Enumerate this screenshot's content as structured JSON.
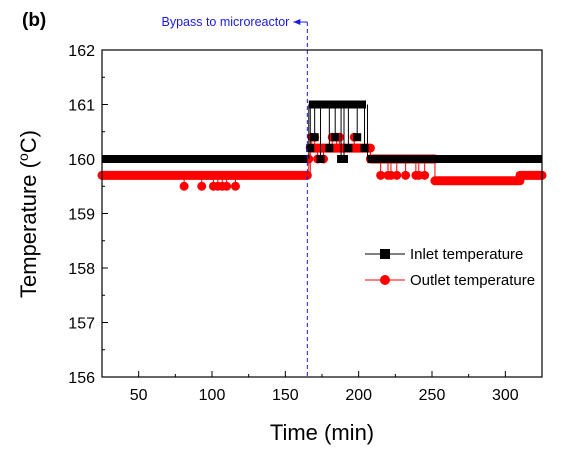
{
  "panel_label": "(b)",
  "colors": {
    "inlet": "#000000",
    "outlet": "#ff0000",
    "annotation": "#1a1ae6"
  },
  "chart_data": {
    "type": "line",
    "xlabel": "Time (min)",
    "ylabel_main": "Temperature (",
    "ylabel_sup": "o",
    "ylabel_unit": "C)",
    "xlim": [
      25,
      325
    ],
    "ylim": [
      156,
      162
    ],
    "xticks": [
      50,
      100,
      150,
      200,
      250,
      300
    ],
    "yticks": [
      156,
      157,
      158,
      159,
      160,
      161,
      162
    ],
    "grid": false,
    "legend_position": "right",
    "annotation": {
      "text": "Bypass to microreactor",
      "x": 165
    },
    "series": [
      {
        "name": "Inlet temperature",
        "marker": "square",
        "color": "#000000",
        "segments": [
          {
            "x_start": 25,
            "x_end": 165,
            "y": 160.0
          },
          {
            "x_start": 166,
            "x_end": 205,
            "y": 161.0
          },
          {
            "x_start": 206,
            "x_end": 325,
            "y": 160.0
          }
        ],
        "points": [
          {
            "x": 167,
            "y": 160.2
          },
          {
            "x": 170,
            "y": 160.4
          },
          {
            "x": 174,
            "y": 160.0
          },
          {
            "x": 180,
            "y": 160.2
          },
          {
            "x": 184,
            "y": 160.4
          },
          {
            "x": 188,
            "y": 160.0
          },
          {
            "x": 190,
            "y": 160.0
          },
          {
            "x": 193,
            "y": 160.2
          },
          {
            "x": 199,
            "y": 160.4
          },
          {
            "x": 204,
            "y": 160.2
          }
        ]
      },
      {
        "name": "Outlet temperature",
        "marker": "circle",
        "color": "#ff0000",
        "segments": [
          {
            "x_start": 25,
            "x_end": 165,
            "y": 159.7
          },
          {
            "x_start": 167,
            "x_end": 208,
            "y": 160.2
          },
          {
            "x_start": 208,
            "x_end": 252,
            "y": 160.0
          },
          {
            "x_start": 252,
            "x_end": 310,
            "y": 159.6
          },
          {
            "x_start": 310,
            "x_end": 325,
            "y": 159.7
          }
        ],
        "points": [
          {
            "x": 81,
            "y": 159.5
          },
          {
            "x": 93,
            "y": 159.5
          },
          {
            "x": 101,
            "y": 159.5
          },
          {
            "x": 104,
            "y": 159.5
          },
          {
            "x": 107,
            "y": 159.5
          },
          {
            "x": 110,
            "y": 159.5
          },
          {
            "x": 116,
            "y": 159.5
          },
          {
            "x": 166,
            "y": 160.0
          },
          {
            "x": 168,
            "y": 160.4
          },
          {
            "x": 170,
            "y": 160.4
          },
          {
            "x": 172,
            "y": 160.0
          },
          {
            "x": 176,
            "y": 160.0
          },
          {
            "x": 182,
            "y": 160.4
          },
          {
            "x": 185,
            "y": 160.4
          },
          {
            "x": 187,
            "y": 160.4
          },
          {
            "x": 197,
            "y": 160.4
          },
          {
            "x": 215,
            "y": 159.7
          },
          {
            "x": 220,
            "y": 159.7
          },
          {
            "x": 222,
            "y": 159.7
          },
          {
            "x": 226,
            "y": 159.7
          },
          {
            "x": 232,
            "y": 159.7
          },
          {
            "x": 239,
            "y": 159.7
          },
          {
            "x": 241,
            "y": 159.7
          },
          {
            "x": 245,
            "y": 159.7
          }
        ]
      }
    ]
  }
}
